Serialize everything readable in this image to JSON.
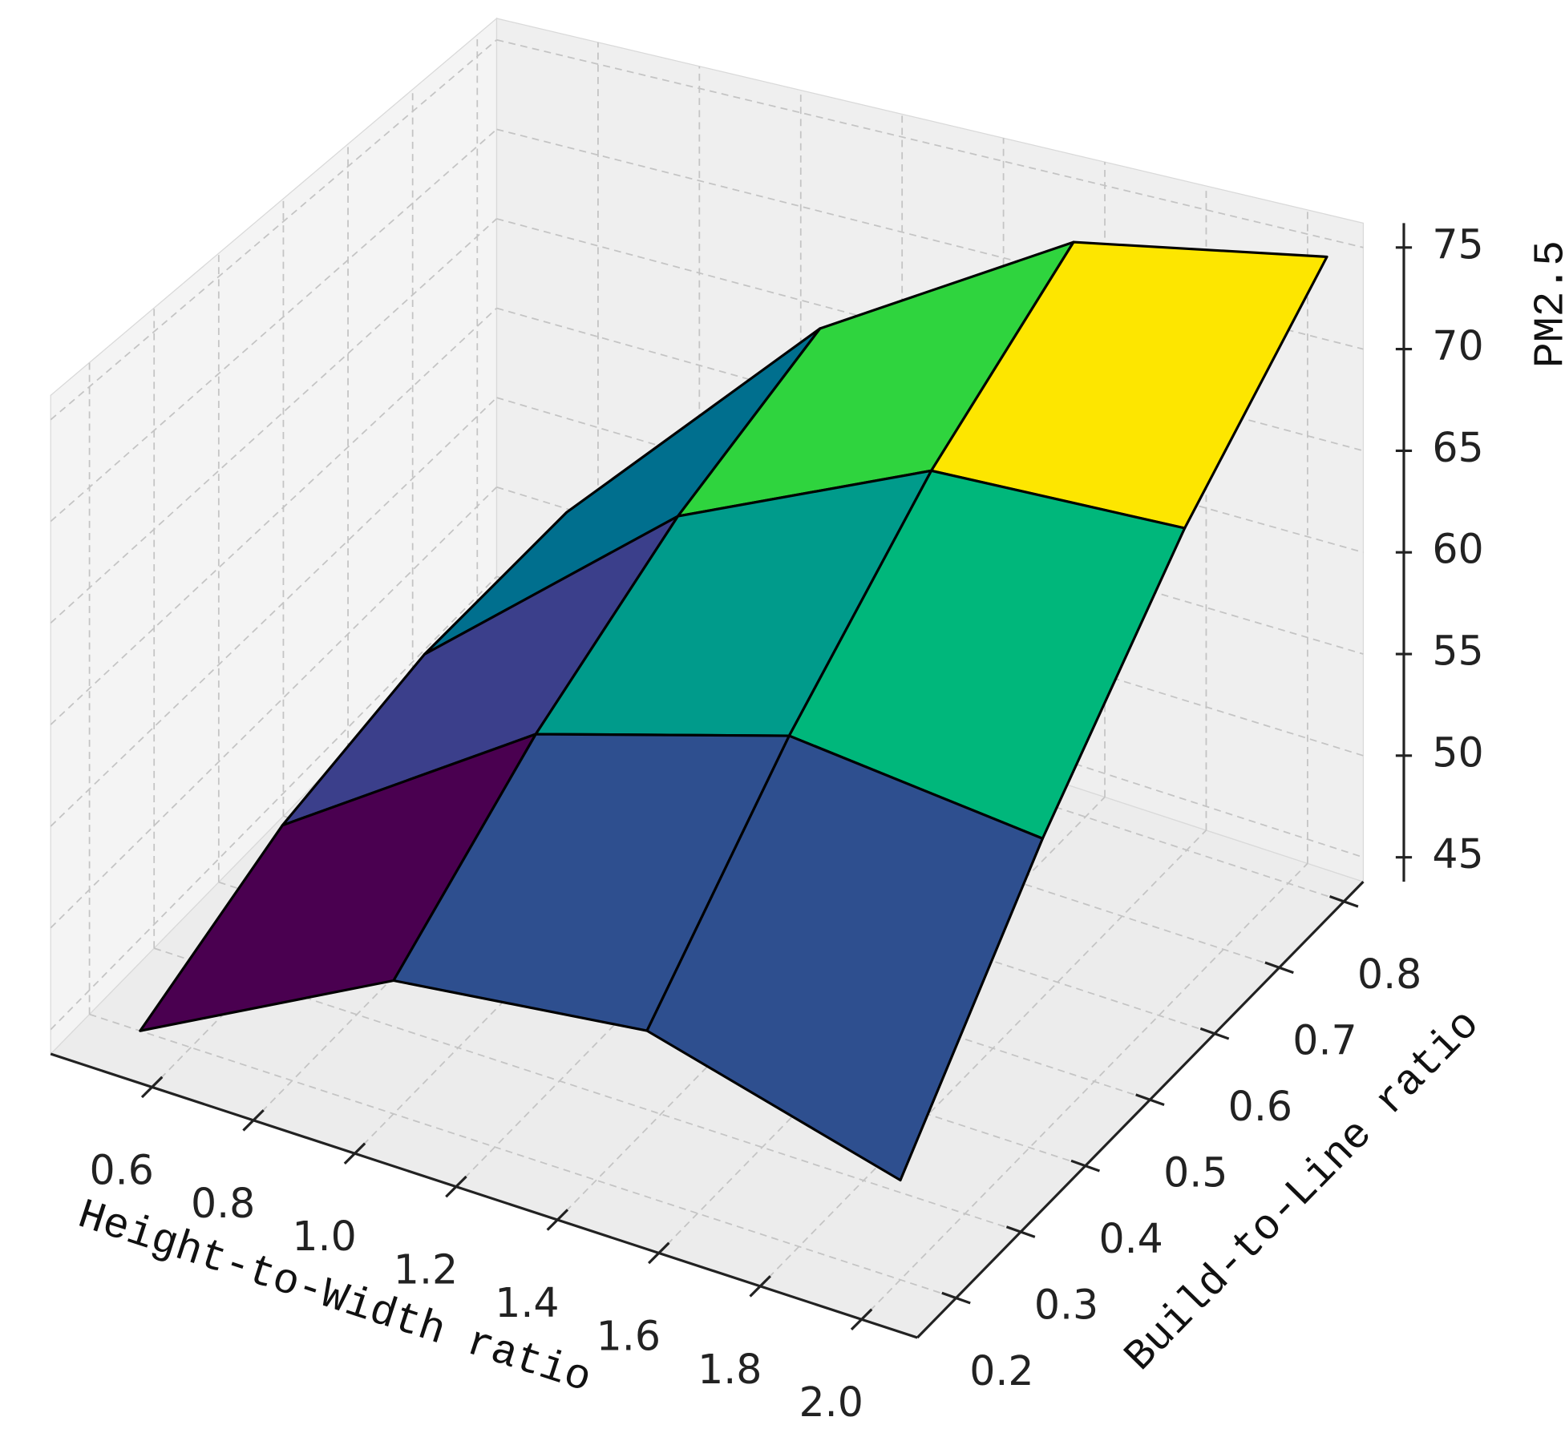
{
  "chart_data": {
    "type": "surface",
    "x": [
      0.5,
      1.0,
      1.5,
      2.0
    ],
    "y": [
      0.2,
      0.42,
      0.64,
      0.86
    ],
    "z": [
      [
        43.8,
        50.4,
        52.0,
        48.7
      ],
      [
        46.9,
        55.7,
        59.6,
        58.4
      ],
      [
        48.4,
        59.8,
        65.9,
        66.6
      ],
      [
        48.4,
        62.5,
        70.5,
        72.9
      ]
    ],
    "face_colors": [
      [
        "#4a0050",
        "#2e4f8f",
        "#2e4f8f"
      ],
      [
        "#3b3f8b",
        "#009b8b",
        "#00b77b"
      ],
      [
        "#006f8e",
        "#2fd43e",
        "#fde600"
      ]
    ],
    "xlabel": "Height-to-Width ratio",
    "ylabel": "Build-to-Line ratio",
    "zlabel": "PM2.5",
    "xlim": [
      0.4,
      2.11
    ],
    "ylim": [
      0.14,
      0.83
    ],
    "zlim": [
      43.8,
      76.2
    ],
    "xticks": [
      0.6,
      0.8,
      {
        "value": 1.0,
        "label": "1.0"
      },
      1.2,
      1.4,
      1.6,
      1.8,
      {
        "value": 2.0,
        "label": "2.0"
      }
    ],
    "yticks": [
      0.2,
      0.3,
      0.4,
      0.5,
      0.6,
      0.7,
      0.8
    ],
    "zticks": [
      45,
      50,
      55,
      60,
      65,
      70,
      75
    ],
    "grid": true
  }
}
